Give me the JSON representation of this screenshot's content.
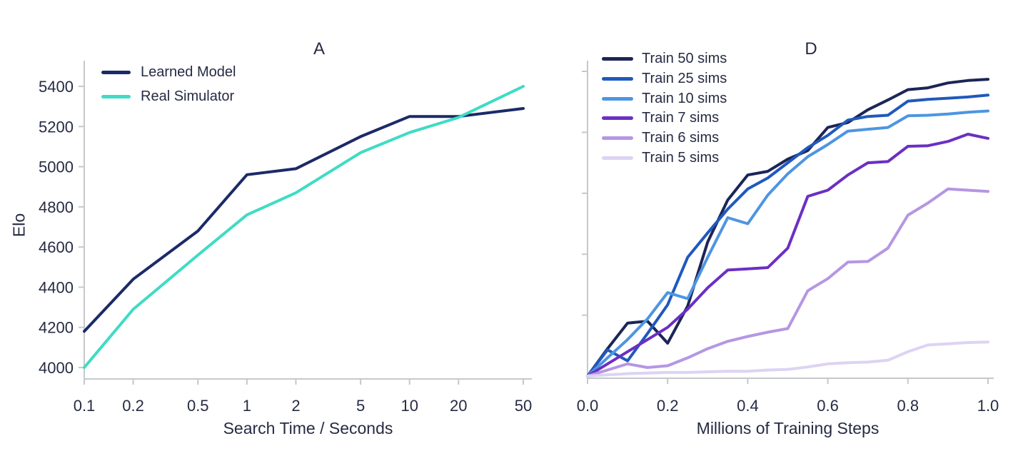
{
  "chart_data": [
    {
      "panel_label": "A",
      "type": "line",
      "x_scale": "log",
      "xlabel": "Search Time / Seconds",
      "ylabel": "Elo",
      "x_ticks": [
        0.1,
        0.2,
        0.5,
        1,
        2,
        5,
        10,
        20,
        50
      ],
      "x_tick_labels": [
        "0.1",
        "0.2",
        "0.5",
        "1",
        "2",
        "5",
        "10",
        "20",
        "50"
      ],
      "y_ticks": [
        4000,
        4200,
        4400,
        4600,
        4800,
        5000,
        5200,
        5400
      ],
      "xlim": [
        0.1,
        50
      ],
      "ylim": [
        3940,
        5530
      ],
      "grid": false,
      "legend_position": "upper-left",
      "series": [
        {
          "name": "Learned Model",
          "color": "#1b2a68",
          "x": [
            0.1,
            0.2,
            0.5,
            1,
            2,
            5,
            10,
            20,
            50
          ],
          "y": [
            4180,
            4440,
            4680,
            4960,
            4990,
            5150,
            5250,
            5250,
            5290
          ]
        },
        {
          "name": "Real Simulator",
          "color": "#3edcc4",
          "x": [
            0.1,
            0.2,
            0.5,
            1,
            2,
            5,
            10,
            20,
            50
          ],
          "y": [
            4000,
            4290,
            4560,
            4760,
            4870,
            5070,
            5170,
            5245,
            5400
          ]
        }
      ]
    },
    {
      "panel_label": "D",
      "type": "line",
      "x_scale": "linear",
      "xlabel": "Millions of Training Steps",
      "ylabel": "",
      "x_ticks": [
        0,
        0.2,
        0.4,
        0.6,
        0.8,
        1.0
      ],
      "x_tick_labels": [
        "0.0",
        "0.2",
        "0.4",
        "0.6",
        "0.8",
        "1.0"
      ],
      "y_axis_note": "y tick marks are unlabeled in the figure; series values given in axis-tick units above the baseline",
      "y_ticks_units": [
        1,
        2,
        3,
        4,
        5
      ],
      "xlim": [
        0,
        1
      ],
      "ylim_units": [
        0,
        5.22
      ],
      "grid": false,
      "legend_position": "upper-left",
      "x": [
        0,
        0.05,
        0.1,
        0.15,
        0.2,
        0.25,
        0.3,
        0.35,
        0.4,
        0.45,
        0.5,
        0.55,
        0.6,
        0.65,
        0.7,
        0.75,
        0.8,
        0.85,
        0.9,
        0.95,
        1.0
      ],
      "series": [
        {
          "name": "Train 50 sims",
          "color": "#1c2556",
          "values": [
            0,
            0.45,
            0.87,
            0.9,
            0.54,
            1.15,
            2.2,
            2.89,
            3.3,
            3.36,
            3.56,
            3.7,
            4.08,
            4.16,
            4.37,
            4.53,
            4.7,
            4.73,
            4.81,
            4.85,
            4.87
          ]
        },
        {
          "name": "Train 25 sims",
          "color": "#2059bd",
          "values": [
            0,
            0.43,
            0.25,
            0.7,
            1.17,
            1.95,
            2.35,
            2.74,
            3.07,
            3.25,
            3.5,
            3.75,
            3.95,
            4.2,
            4.26,
            4.28,
            4.51,
            4.54,
            4.56,
            4.58,
            4.61
          ]
        },
        {
          "name": "Train 10 sims",
          "color": "#4e95e1",
          "values": [
            0,
            0.3,
            0.6,
            0.94,
            1.37,
            1.27,
            1.95,
            2.6,
            2.5,
            2.97,
            3.32,
            3.6,
            3.8,
            4.02,
            4.05,
            4.08,
            4.27,
            4.28,
            4.3,
            4.33,
            4.35
          ]
        },
        {
          "name": "Train 7 sims",
          "color": "#6b2fc3",
          "values": [
            0,
            0.2,
            0.4,
            0.6,
            0.8,
            1.1,
            1.45,
            1.74,
            1.76,
            1.78,
            2.1,
            2.95,
            3.05,
            3.3,
            3.5,
            3.52,
            3.77,
            3.78,
            3.85,
            3.97,
            3.9
          ]
        },
        {
          "name": "Train 6 sims",
          "color": "#b596e3",
          "values": [
            0,
            0.1,
            0.2,
            0.14,
            0.17,
            0.3,
            0.45,
            0.57,
            0.65,
            0.72,
            0.78,
            1.4,
            1.6,
            1.87,
            1.88,
            2.1,
            2.64,
            2.84,
            3.07,
            3.05,
            3.03
          ]
        },
        {
          "name": "Train 5 sims",
          "color": "#ddd3f3",
          "values": [
            0,
            0.02,
            0.04,
            0.05,
            0.06,
            0.06,
            0.07,
            0.08,
            0.08,
            0.1,
            0.11,
            0.15,
            0.2,
            0.22,
            0.23,
            0.26,
            0.4,
            0.51,
            0.53,
            0.55,
            0.56
          ]
        }
      ]
    }
  ],
  "style": {
    "axis_color": "#c7c8cc",
    "text_color": "#262b43"
  }
}
